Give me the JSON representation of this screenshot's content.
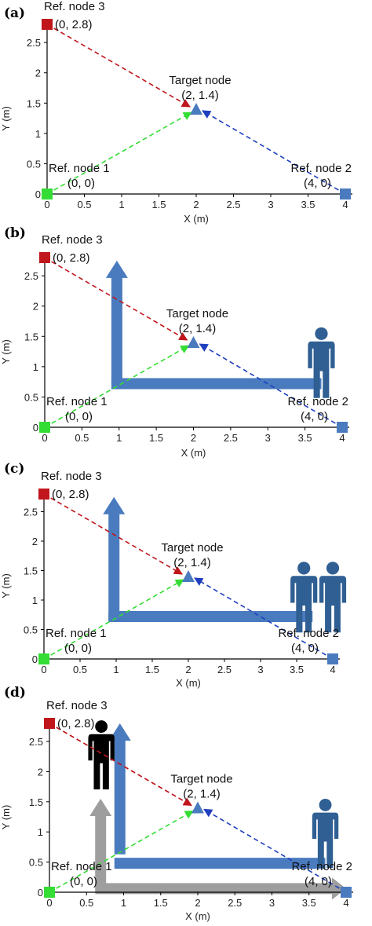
{
  "labels": {
    "ref3": "Ref. node 3",
    "ref3_coord": "(0, 2.8)",
    "target": "Target node",
    "target_coord": "(2, 1.4)",
    "ref1": "Ref. node 1",
    "ref1_coord": "(0, 0)",
    "ref2": "Ref. node 2",
    "ref2_coord": "(4, 0)",
    "xlabel": "X (m)",
    "ylabel": "Y (m)"
  },
  "colors": {
    "ref1": "#33dd33",
    "ref2": "#4a7bbf",
    "ref3": "#c0161c",
    "target": "#4a7bbf",
    "arrow_blue": "#4a7bbf",
    "arrow_grey": "#9e9e9e",
    "person_blue": "#2f5f93",
    "person_black": "#000000"
  },
  "chart_data": [
    {
      "type": "scatter",
      "panel": "(a)",
      "xlabel": "X (m)",
      "ylabel": "Y (m)",
      "xlim": [
        0,
        4
      ],
      "ylim": [
        0,
        2.8
      ],
      "xticks": [
        "0",
        "0.5",
        "1",
        "1.5",
        "2",
        "2.5",
        "3",
        "3.5",
        "4"
      ],
      "yticks": [
        "0",
        "0.5",
        "1",
        "1.5",
        "2",
        "2.5"
      ],
      "nodes": [
        {
          "name": "Ref. node 1",
          "x": 0,
          "y": 0
        },
        {
          "name": "Ref. node 2",
          "x": 4,
          "y": 0
        },
        {
          "name": "Ref. node 3",
          "x": 0,
          "y": 2.8
        },
        {
          "name": "Target node",
          "x": 2,
          "y": 1.4
        }
      ],
      "obstacles": []
    },
    {
      "type": "scatter",
      "panel": "(b)",
      "xlabel": "X (m)",
      "ylabel": "Y (m)",
      "xlim": [
        0,
        4
      ],
      "ylim": [
        0,
        2.8
      ],
      "xticks": [
        "0",
        "0.5",
        "1",
        "1.5",
        "2",
        "2.5",
        "3",
        "3.5",
        "4"
      ],
      "yticks": [
        "0",
        "0.5",
        "1",
        "1.5",
        "2",
        "2.5"
      ],
      "nodes": [
        {
          "name": "Ref. node 1",
          "x": 0,
          "y": 0
        },
        {
          "name": "Ref. node 2",
          "x": 4,
          "y": 0
        },
        {
          "name": "Ref. node 3",
          "x": 0,
          "y": 2.8
        },
        {
          "name": "Target node",
          "x": 2,
          "y": 1.4
        }
      ],
      "obstacles": [
        "blue axis arrows",
        "one blue person"
      ]
    },
    {
      "type": "scatter",
      "panel": "(c)",
      "xlabel": "X (m)",
      "ylabel": "Y (m)",
      "xlim": [
        0,
        4
      ],
      "ylim": [
        0,
        2.8
      ],
      "xticks": [
        "0",
        "0.5",
        "1",
        "1.5",
        "2",
        "2.5",
        "3",
        "3.5",
        "4"
      ],
      "yticks": [
        "0",
        "0.5",
        "1",
        "1.5",
        "2",
        "2.5"
      ],
      "nodes": [
        {
          "name": "Ref. node 1",
          "x": 0,
          "y": 0
        },
        {
          "name": "Ref. node 2",
          "x": 4,
          "y": 0
        },
        {
          "name": "Ref. node 3",
          "x": 0,
          "y": 2.8
        },
        {
          "name": "Target node",
          "x": 2,
          "y": 1.4
        }
      ],
      "obstacles": [
        "blue axis arrows",
        "two blue persons"
      ]
    },
    {
      "type": "scatter",
      "panel": "(d)",
      "xlabel": "X (m)",
      "ylabel": "Y (m)",
      "xlim": [
        0,
        4
      ],
      "ylim": [
        0,
        2.8
      ],
      "xticks": [
        "0",
        "0.5",
        "1",
        "1.5",
        "2",
        "2.5",
        "3",
        "3.5",
        "4"
      ],
      "yticks": [
        "0",
        "0.5",
        "1",
        "1.5",
        "2",
        "2.5"
      ],
      "nodes": [
        {
          "name": "Ref. node 1",
          "x": 0,
          "y": 0
        },
        {
          "name": "Ref. node 2",
          "x": 4,
          "y": 0
        },
        {
          "name": "Ref. node 3",
          "x": 0,
          "y": 2.8
        },
        {
          "name": "Target node",
          "x": 2,
          "y": 1.4
        }
      ],
      "obstacles": [
        "blue axis arrows",
        "grey axis arrows",
        "one blue person",
        "one black person"
      ]
    }
  ]
}
